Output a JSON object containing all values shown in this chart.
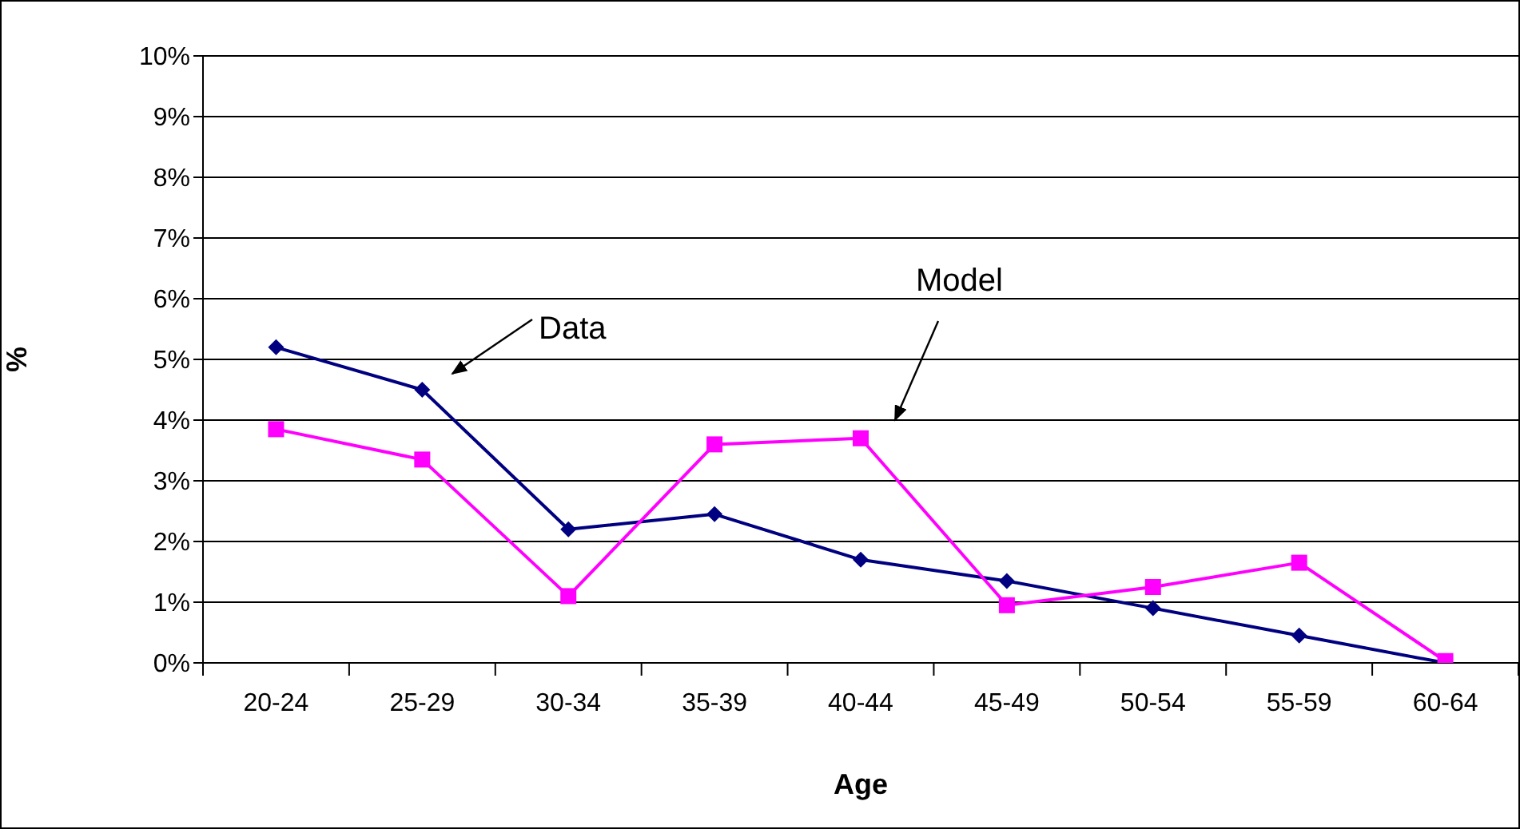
{
  "chart_data": {
    "type": "line",
    "xlabel": "Age",
    "ylabel": "%",
    "categories": [
      "20-24",
      "25-29",
      "30-34",
      "35-39",
      "40-44",
      "45-49",
      "50-54",
      "55-59",
      "60-64"
    ],
    "series": [
      {
        "name": "Data",
        "color": "#000080",
        "marker": "diamond",
        "values": [
          5.2,
          4.5,
          2.2,
          2.45,
          1.7,
          1.35,
          0.9,
          0.45,
          0
        ]
      },
      {
        "name": "Model",
        "color": "#ff00ff",
        "marker": "square",
        "values": [
          3.85,
          3.35,
          1.1,
          3.6,
          3.7,
          0.95,
          1.25,
          1.65,
          0.03
        ]
      }
    ],
    "ylim": [
      0,
      10
    ],
    "yticks": [
      {
        "value": 0,
        "label": "0%"
      },
      {
        "value": 1,
        "label": "1%"
      },
      {
        "value": 2,
        "label": "2%"
      },
      {
        "value": 3,
        "label": "3%"
      },
      {
        "value": 4,
        "label": "4%"
      },
      {
        "value": 5,
        "label": "5%"
      },
      {
        "value": 6,
        "label": "6%"
      },
      {
        "value": 7,
        "label": "7%"
      },
      {
        "value": 8,
        "label": "8%"
      },
      {
        "value": 9,
        "label": "9%"
      },
      {
        "value": 10,
        "label": "10%"
      }
    ],
    "grid": "y",
    "legend": false,
    "line_style": "solid"
  }
}
